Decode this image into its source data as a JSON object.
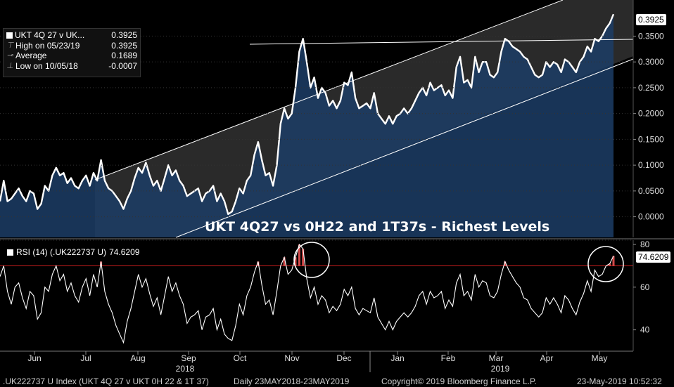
{
  "chart_data": [
    {
      "type": "line",
      "title": "UKT 4Q27 vs 0H22 and 1T37s - Richest Levels",
      "series": [
        {
          "name": "UKT 4Q 27 v UK...",
          "last": "0.3925"
        }
      ],
      "legend": {
        "rows": [
          {
            "label": "UKT 4Q 27 v UK...",
            "value": "0.3925"
          },
          {
            "label": "High on 05/23/19",
            "value": "0.3925"
          },
          {
            "label": "Average",
            "value": "0.1689"
          },
          {
            "label": "Low on 10/05/18",
            "value": "-0.0007"
          }
        ]
      },
      "ylim": [
        -0.04,
        0.42
      ],
      "yticks": [
        "0.3500",
        "0.3000",
        "0.2500",
        "0.2000",
        "0.1500",
        "0.1000",
        "0.0500",
        "0.0000"
      ],
      "last_value_label": "0.3925",
      "values": [
        0.03,
        0.07,
        0.03,
        0.035,
        0.045,
        0.055,
        0.04,
        0.03,
        0.05,
        0.045,
        0.015,
        0.025,
        0.06,
        0.05,
        0.08,
        0.095,
        0.08,
        0.085,
        0.065,
        0.075,
        0.06,
        0.055,
        0.07,
        0.08,
        0.06,
        0.085,
        0.07,
        0.11,
        0.07,
        0.055,
        0.05,
        0.04,
        0.03,
        0.015,
        0.035,
        0.05,
        0.075,
        0.095,
        0.085,
        0.105,
        0.08,
        0.06,
        0.07,
        0.05,
        0.075,
        0.1,
        0.08,
        0.09,
        0.07,
        0.06,
        0.04,
        0.045,
        0.05,
        0.055,
        0.03,
        0.045,
        0.05,
        0.06,
        0.03,
        0.045,
        0.03,
        0.005,
        0.01,
        0.03,
        0.055,
        0.045,
        0.07,
        0.08,
        0.12,
        0.145,
        0.11,
        0.08,
        0.085,
        0.06,
        0.1,
        0.18,
        0.21,
        0.19,
        0.2,
        0.25,
        0.32,
        0.345,
        0.3,
        0.25,
        0.27,
        0.23,
        0.25,
        0.24,
        0.215,
        0.225,
        0.21,
        0.225,
        0.26,
        0.255,
        0.28,
        0.23,
        0.21,
        0.215,
        0.22,
        0.21,
        0.24,
        0.2,
        0.19,
        0.18,
        0.195,
        0.18,
        0.195,
        0.2,
        0.21,
        0.2,
        0.21,
        0.225,
        0.24,
        0.25,
        0.235,
        0.26,
        0.245,
        0.25,
        0.255,
        0.235,
        0.245,
        0.23,
        0.29,
        0.31,
        0.26,
        0.265,
        0.25,
        0.31,
        0.28,
        0.3,
        0.3,
        0.275,
        0.27,
        0.28,
        0.32,
        0.345,
        0.34,
        0.33,
        0.325,
        0.32,
        0.31,
        0.305,
        0.29,
        0.275,
        0.27,
        0.275,
        0.3,
        0.29,
        0.3,
        0.295,
        0.28,
        0.305,
        0.3,
        0.29,
        0.28,
        0.3,
        0.31,
        0.33,
        0.32,
        0.345,
        0.34,
        0.35,
        0.365,
        0.375,
        0.3925
      ]
    },
    {
      "type": "line",
      "title": "",
      "series": [
        {
          "name": "RSI (14) (.UK222737 U)",
          "last": "74.6209"
        }
      ],
      "legend_label": "RSI (14) (.UK222737 U)",
      "legend_value": "74.6209",
      "ylim": [
        30,
        82
      ],
      "yticks": [
        "80",
        "60",
        "40"
      ],
      "overbought": 70,
      "oversold": 30,
      "last_value_label": "74.6209",
      "values": [
        65,
        70,
        58,
        52,
        60,
        62,
        55,
        50,
        58,
        56,
        45,
        48,
        60,
        58,
        66,
        70,
        63,
        66,
        58,
        62,
        56,
        53,
        60,
        64,
        56,
        66,
        60,
        72,
        58,
        52,
        48,
        42,
        38,
        34,
        44,
        50,
        58,
        66,
        60,
        64,
        57,
        51,
        55,
        47,
        56,
        65,
        58,
        62,
        56,
        52,
        43,
        46,
        47,
        49,
        40,
        46,
        47,
        50,
        40,
        45,
        38,
        36,
        35,
        42,
        52,
        47,
        56,
        60,
        67,
        72,
        61,
        52,
        54,
        47,
        58,
        70,
        74,
        66,
        68,
        74,
        80,
        78,
        64,
        55,
        60,
        52,
        56,
        54,
        48,
        51,
        49,
        52,
        59,
        56,
        60,
        50,
        47,
        50,
        49,
        48,
        55,
        46,
        43,
        40,
        44,
        40,
        44,
        46,
        48,
        46,
        48,
        51,
        56,
        58,
        52,
        58,
        55,
        56,
        58,
        50,
        54,
        51,
        62,
        66,
        56,
        58,
        54,
        66,
        60,
        63,
        62,
        56,
        55,
        58,
        66,
        72,
        68,
        65,
        62,
        60,
        55,
        54,
        50,
        48,
        46,
        48,
        55,
        52,
        55,
        52,
        48,
        56,
        54,
        50,
        47,
        53,
        57,
        63,
        58,
        68,
        65,
        66,
        70,
        71,
        74.6209
      ]
    }
  ],
  "x_axis": {
    "months": [
      "Jun",
      "Jul",
      "Aug",
      "Sep",
      "Oct",
      "Nov",
      "Dec",
      "Jan",
      "Feb",
      "Mar",
      "Apr",
      "May"
    ],
    "years": [
      "2018",
      "2019"
    ]
  },
  "footer": {
    "index": ".UK222737 U Index (UKT 4Q 27 v UKT 0H 22 & 1T 37)",
    "range": "Daily 23MAY2018-23MAY2019",
    "copyright": "Copyright© 2019 Bloomberg Finance L.P.",
    "timestamp": "23-May-2019 10:52:32"
  },
  "colors": {
    "line": "#ffffff",
    "area": "#1c3d66",
    "channel": "#2a2a2a",
    "rsi_line": "#c81e1e",
    "rsi_low": "#3aa33a"
  }
}
